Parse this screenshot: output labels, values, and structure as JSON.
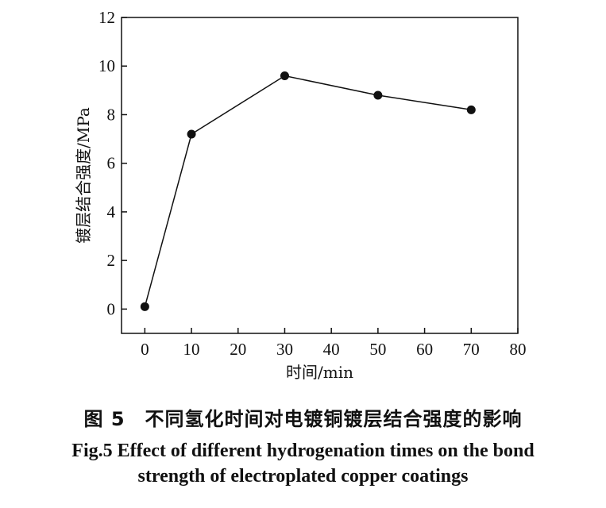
{
  "chart_data": {
    "type": "line",
    "x": [
      0,
      10,
      30,
      50,
      70
    ],
    "series": [
      {
        "values": [
          0.1,
          7.2,
          9.6,
          8.8,
          8.2
        ]
      }
    ],
    "xlabel": "时间/min",
    "ylabel": "镀层结合强度/MPa",
    "xlim": [
      -5,
      80
    ],
    "ylim": [
      -1,
      12
    ],
    "xticks": [
      0,
      10,
      20,
      30,
      40,
      50,
      60,
      70,
      80
    ],
    "yticks": [
      0,
      2,
      4,
      6,
      8,
      10,
      12
    ],
    "grid": false,
    "marker": "filled-circle",
    "line_color": "#111111"
  },
  "caption": {
    "cn": "图 5　不同氢化时间对电镀铜镀层结合强度的影响",
    "en_line1": "Fig.5    Effect of different hydrogenation times on the bond",
    "en_line2": "strength of electroplated copper coatings"
  }
}
